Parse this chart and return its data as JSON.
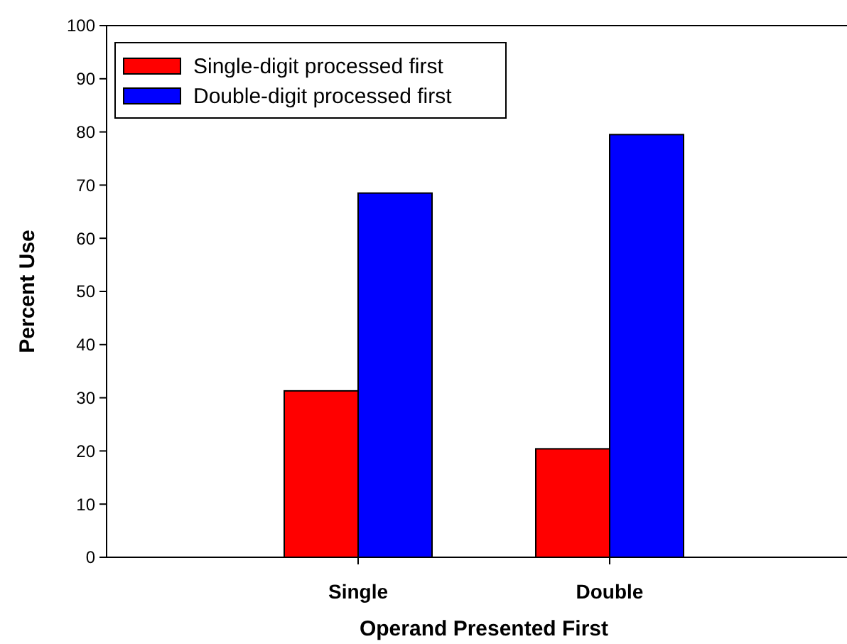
{
  "chart_data": {
    "type": "bar",
    "xlabel": "Operand Presented First",
    "ylabel": "Percent Use",
    "categories": [
      "Single",
      "Double"
    ],
    "series": [
      {
        "name": "Single-digit processed first",
        "color": "#ff0000",
        "values": [
          31.3,
          20.4
        ]
      },
      {
        "name": "Double-digit processed first",
        "color": "#0000ff",
        "values": [
          68.5,
          79.5
        ]
      }
    ],
    "ylim": [
      0,
      100
    ],
    "yticks": [
      0,
      10,
      20,
      30,
      40,
      50,
      60,
      70,
      80,
      90,
      100
    ],
    "grid": false,
    "legend": "top left"
  }
}
